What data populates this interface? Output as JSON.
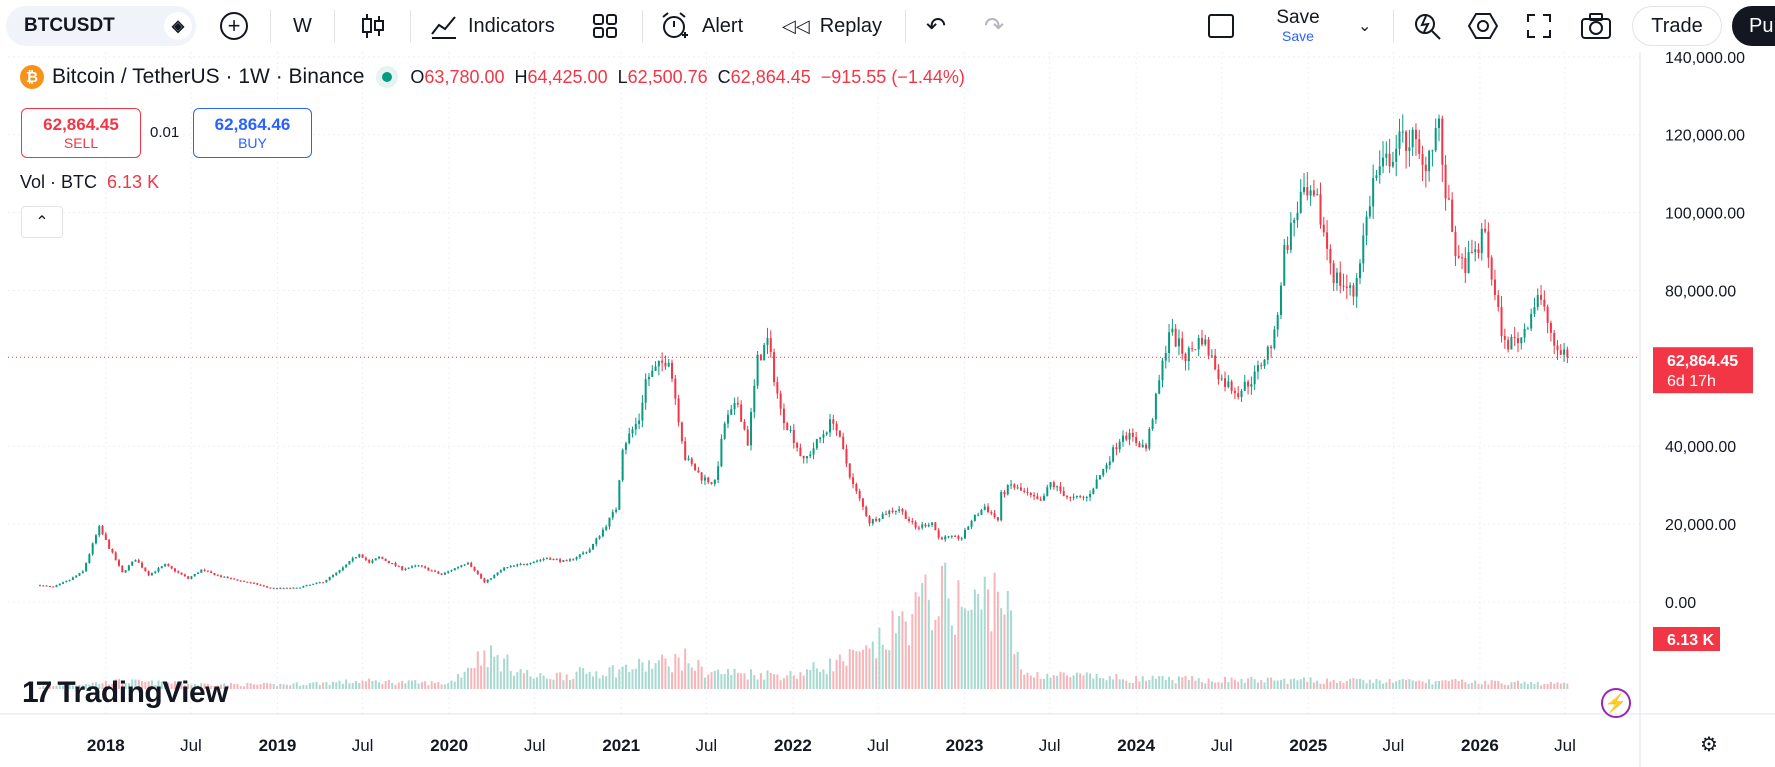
{
  "toolbar": {
    "symbol": "BTCUSDT",
    "interval": "W",
    "indicators_label": "Indicators",
    "alert_label": "Alert",
    "replay_label": "Replay",
    "save_label": "Save",
    "save_sub": "Save",
    "trade_label": "Trade",
    "publish_label": "Pu",
    "icons": [
      "diamond-icon",
      "plus-circle-icon",
      "candles-icon",
      "indicators-icon",
      "layout-grid-icon",
      "alarm-clock-icon",
      "replay-icon",
      "undo-icon",
      "redo-icon",
      "square-icon",
      "chevron-down-icon",
      "quick-search-icon",
      "settings-hex-icon",
      "fullscreen-icon",
      "camera-icon"
    ]
  },
  "legend": {
    "title": "Bitcoin / TetherUS · 1W · Binance",
    "open_key": "O",
    "open": "63,780.00",
    "high_key": "H",
    "high": "64,425.00",
    "low_key": "L",
    "low": "62,500.76",
    "close_key": "C",
    "close": "62,864.45",
    "change": "−915.55 (−1.44%)"
  },
  "trade": {
    "sell_price": "62,864.45",
    "sell_label": "SELL",
    "spread": "0.01",
    "buy_price": "62,864.46",
    "buy_label": "BUY"
  },
  "volume_legend": {
    "label": "Vol · BTC",
    "value": "6.13 K"
  },
  "branding": {
    "logo_text": "TradingView"
  },
  "colors": {
    "up": "#089981",
    "down": "#f23645",
    "grid": "#eef0f4",
    "price_line": "#f23645"
  },
  "chart_data": {
    "type": "candlestick",
    "symbol": "BTCUSDT",
    "interval": "1W",
    "y_tick_labels": [
      "140,000.00",
      "120,000.00",
      "100,000.00",
      "80,000.00",
      "40,000.00",
      "20,000.00",
      "0.00"
    ],
    "y_ticks": [
      140000,
      120000,
      100000,
      80000,
      40000,
      20000,
      0
    ],
    "ylim": [
      0,
      140000
    ],
    "x_tick_labels": [
      "2018",
      "Jul",
      "2019",
      "Jul",
      "2020",
      "Jul",
      "2021",
      "Jul",
      "2022",
      "Jul",
      "2023",
      "Jul",
      "2024",
      "Jul",
      "2025",
      "Jul",
      "2026",
      "Jul"
    ],
    "x_ticks": [
      "2018-01-01",
      "2018-07-01",
      "2019-01-01",
      "2019-07-01",
      "2020-01-01",
      "2020-07-01",
      "2021-01-01",
      "2021-07-01",
      "2022-01-01",
      "2022-07-01",
      "2023-01-01",
      "2023-07-01",
      "2024-01-01",
      "2024-07-01",
      "2025-01-01",
      "2025-07-01",
      "2026-01-01",
      "2026-07-01"
    ],
    "xlim": [
      "2017-08-14",
      "2026-09-07"
    ],
    "last_price": 62864.45,
    "last_price_label": "62,864.45",
    "countdown_label": "6d 17h",
    "volume_label": "6.13 K",
    "price_path": [
      [
        "2017-08-14",
        4300
      ],
      [
        "2017-09-11",
        3800
      ],
      [
        "2017-10-16",
        5700
      ],
      [
        "2017-11-13",
        7800
      ],
      [
        "2017-12-11",
        17000
      ],
      [
        "2017-12-18",
        19000
      ],
      [
        "2018-01-08",
        14000
      ],
      [
        "2018-02-05",
        7500
      ],
      [
        "2018-03-05",
        11000
      ],
      [
        "2018-04-02",
        7000
      ],
      [
        "2018-05-07",
        9500
      ],
      [
        "2018-06-25",
        6000
      ],
      [
        "2018-07-23",
        8200
      ],
      [
        "2018-09-03",
        6500
      ],
      [
        "2018-11-19",
        4500
      ],
      [
        "2018-12-17",
        3500
      ],
      [
        "2019-02-11",
        3600
      ],
      [
        "2019-04-08",
        5200
      ],
      [
        "2019-05-13",
        8000
      ],
      [
        "2019-06-24",
        12500
      ],
      [
        "2019-07-15",
        10000
      ],
      [
        "2019-08-05",
        11500
      ],
      [
        "2019-09-23",
        8500
      ],
      [
        "2019-10-28",
        9300
      ],
      [
        "2019-12-16",
        7000
      ],
      [
        "2020-02-10",
        10300
      ],
      [
        "2020-03-16",
        5000
      ],
      [
        "2020-04-27",
        8700
      ],
      [
        "2020-06-01",
        9600
      ],
      [
        "2020-07-27",
        11300
      ],
      [
        "2020-09-07",
        10300
      ],
      [
        "2020-10-26",
        13500
      ],
      [
        "2020-11-23",
        18500
      ],
      [
        "2020-12-21",
        24000
      ],
      [
        "2021-01-04",
        40000
      ],
      [
        "2021-02-08",
        47000
      ],
      [
        "2021-02-22",
        57000
      ],
      [
        "2021-04-12",
        63000
      ],
      [
        "2021-05-17",
        37000
      ],
      [
        "2021-06-21",
        32000
      ],
      [
        "2021-07-19",
        30500
      ],
      [
        "2021-08-09",
        46000
      ],
      [
        "2021-09-06",
        51000
      ],
      [
        "2021-09-27",
        41000
      ],
      [
        "2021-10-18",
        62000
      ],
      [
        "2021-11-08",
        67000
      ],
      [
        "2021-12-06",
        49000
      ],
      [
        "2022-01-03",
        42000
      ],
      [
        "2022-01-24",
        36000
      ],
      [
        "2022-03-28",
        47000
      ],
      [
        "2022-05-09",
        30000
      ],
      [
        "2022-06-13",
        20500
      ],
      [
        "2022-07-18",
        23000
      ],
      [
        "2022-08-15",
        24000
      ],
      [
        "2022-09-19",
        19000
      ],
      [
        "2022-10-24",
        20500
      ],
      [
        "2022-11-07",
        16500
      ],
      [
        "2022-12-26",
        16500
      ],
      [
        "2023-01-16",
        21000
      ],
      [
        "2023-02-13",
        24500
      ],
      [
        "2023-03-13",
        21000
      ],
      [
        "2023-03-20",
        27500
      ],
      [
        "2023-04-10",
        30000
      ],
      [
        "2023-06-12",
        25500
      ],
      [
        "2023-07-03",
        30500
      ],
      [
        "2023-08-14",
        26500
      ],
      [
        "2023-09-18",
        26800
      ],
      [
        "2023-10-23",
        34000
      ],
      [
        "2023-12-04",
        43500
      ],
      [
        "2024-01-22",
        39500
      ],
      [
        "2024-02-12",
        52000
      ],
      [
        "2024-03-11",
        70000
      ],
      [
        "2024-04-15",
        63000
      ],
      [
        "2024-05-20",
        68000
      ],
      [
        "2024-07-01",
        57000
      ],
      [
        "2024-08-05",
        54000
      ],
      [
        "2024-09-09",
        58000
      ],
      [
        "2024-10-21",
        68000
      ],
      [
        "2024-11-11",
        90000
      ],
      [
        "2024-12-16",
        104000
      ],
      [
        "2025-01-20",
        102000
      ],
      [
        "2025-02-24",
        84000
      ],
      [
        "2025-04-07",
        79000
      ],
      [
        "2025-05-19",
        108000
      ],
      [
        "2025-07-14",
        118000
      ],
      [
        "2025-08-11",
        119000
      ],
      [
        "2025-09-01",
        111000
      ],
      [
        "2025-10-06",
        124000
      ],
      [
        "2025-10-13",
        110000
      ],
      [
        "2025-11-17",
        86000
      ],
      [
        "2025-12-15",
        88000
      ],
      [
        "2026-01-12",
        95000
      ],
      [
        "2026-02-02",
        78000
      ],
      [
        "2026-02-23",
        66000
      ],
      [
        "2026-03-30",
        68000
      ],
      [
        "2026-05-04",
        79000
      ],
      [
        "2026-05-25",
        72000
      ],
      [
        "2026-06-15",
        63000
      ],
      [
        "2026-06-29",
        64500
      ],
      [
        "2026-07-06",
        62864.45
      ]
    ],
    "volume_path": [
      [
        "2017-08-14",
        0.15
      ],
      [
        "2018-02-05",
        0.55
      ],
      [
        "2018-07-01",
        0.35
      ],
      [
        "2019-01-01",
        0.3
      ],
      [
        "2019-07-01",
        0.55
      ],
      [
        "2020-01-01",
        0.4
      ],
      [
        "2020-03-16",
        2.6
      ],
      [
        "2020-07-01",
        0.8
      ],
      [
        "2021-01-01",
        1.4
      ],
      [
        "2021-05-17",
        2.1
      ],
      [
        "2021-07-01",
        1.2
      ],
      [
        "2022-01-01",
        1.0
      ],
      [
        "2022-06-13",
        2.5
      ],
      [
        "2022-09-01",
        5.0
      ],
      [
        "2022-11-07",
        6.8
      ],
      [
        "2023-01-16",
        5.5
      ],
      [
        "2023-03-20",
        7.5
      ],
      [
        "2023-05-01",
        1.1
      ],
      [
        "2024-01-01",
        0.7
      ],
      [
        "2025-01-01",
        0.6
      ],
      [
        "2026-01-01",
        0.5
      ],
      [
        "2026-07-06",
        0.35
      ]
    ],
    "volume_ylim": [
      0,
      10
    ]
  }
}
